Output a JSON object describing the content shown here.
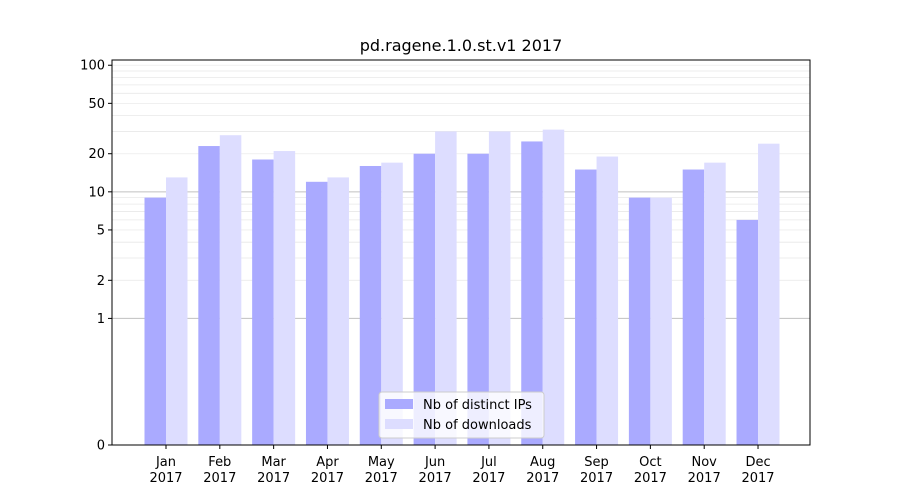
{
  "chart_data": {
    "type": "bar",
    "title": "pd.ragene.1.0.st.v1 2017",
    "xlabel": "",
    "ylabel": "",
    "yscale": "symlog",
    "ylim": [
      0,
      110
    ],
    "yticks": [
      0,
      1,
      2,
      5,
      10,
      20,
      50,
      100
    ],
    "grid": true,
    "legend_position": "bottom-center",
    "categories": [
      [
        "Jan",
        "2017"
      ],
      [
        "Feb",
        "2017"
      ],
      [
        "Mar",
        "2017"
      ],
      [
        "Apr",
        "2017"
      ],
      [
        "May",
        "2017"
      ],
      [
        "Jun",
        "2017"
      ],
      [
        "Jul",
        "2017"
      ],
      [
        "Aug",
        "2017"
      ],
      [
        "Sep",
        "2017"
      ],
      [
        "Oct",
        "2017"
      ],
      [
        "Nov",
        "2017"
      ],
      [
        "Dec",
        "2017"
      ]
    ],
    "series": [
      {
        "name": "Nb of distinct IPs",
        "color": "#aaaaff",
        "values": [
          9,
          23,
          18,
          12,
          16,
          20,
          20,
          25,
          15,
          9,
          15,
          6
        ]
      },
      {
        "name": "Nb of downloads",
        "color": "#ddddff",
        "values": [
          13,
          28,
          21,
          13,
          17,
          30,
          30,
          31,
          19,
          9,
          17,
          24
        ]
      }
    ]
  }
}
